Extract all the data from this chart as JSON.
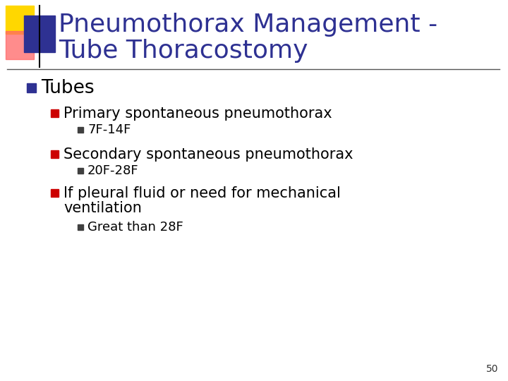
{
  "title_line1": "Pneumothorax Management -",
  "title_line2": "Tube Thoracostomy",
  "title_color": "#2E3192",
  "background_color": "#FFFFFF",
  "slide_number": "50",
  "bullet1": "Tubes",
  "bullet1_color": "#000000",
  "bullet1_square_color": "#2E3192",
  "bullet2": "Primary spontaneous pneumothorax",
  "bullet2_color": "#000000",
  "bullet2_square_color": "#CC0000",
  "bullet2_sub": "7F-14F",
  "bullet3": "Secondary spontaneous pneumothorax",
  "bullet3_color": "#000000",
  "bullet3_square_color": "#CC0000",
  "bullet3_sub": "20F-28F",
  "bullet4_line1": "If pleural fluid or need for mechanical",
  "bullet4_line2": "ventilation",
  "bullet4_color": "#000000",
  "bullet4_square_color": "#CC0000",
  "bullet4_sub": "Great than 28F",
  "sub_square_color": "#404040",
  "decoration_yellow": "#FFD700",
  "decoration_red": "#FF6666",
  "decoration_blue": "#2E3192",
  "line_color": "#555555"
}
